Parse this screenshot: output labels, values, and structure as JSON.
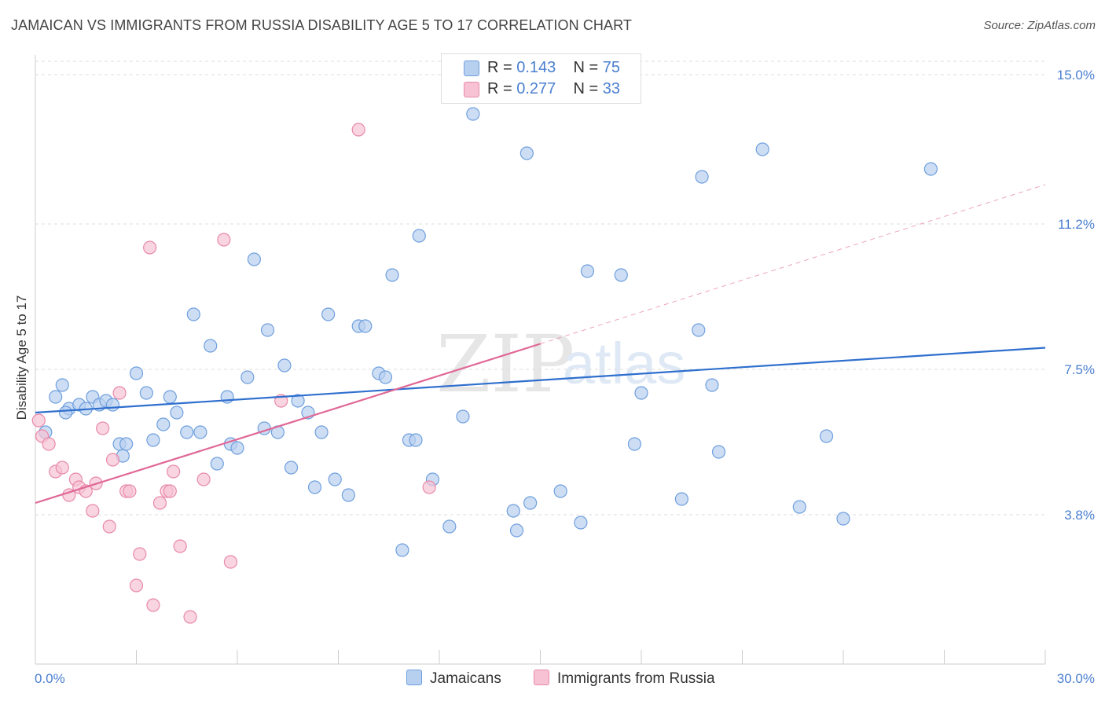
{
  "title": "JAMAICAN VS IMMIGRANTS FROM RUSSIA DISABILITY AGE 5 TO 17 CORRELATION CHART",
  "source": "Source: ZipAtlas.com",
  "watermark": {
    "zip": "ZIP",
    "atlas": "atlas"
  },
  "legend": {
    "r_label": "R =",
    "n_label": "N =",
    "rows": [
      {
        "r": "0.143",
        "n": "75"
      },
      {
        "r": "0.277",
        "n": "33"
      }
    ]
  },
  "colors": {
    "blue_fill": "#b8d0f0",
    "blue_stroke": "#6f9fde",
    "blue_line": "#2f6fce",
    "pink_fill": "#f7c3d4",
    "pink_stroke": "#e889a8",
    "pink_line": "#e06896",
    "tick_text": "#4a7fd0",
    "grid": "#dddddd"
  },
  "chart_data": {
    "type": "scatter",
    "title": "JAMAICAN VS IMMIGRANTS FROM RUSSIA DISABILITY AGE 5 TO 17 CORRELATION CHART",
    "xlabel": "",
    "ylabel": "Disability Age 5 to 17",
    "xlim": [
      0,
      30
    ],
    "ylim": [
      0,
      15.5
    ],
    "x_tick_labels": [
      "0.0%",
      "30.0%"
    ],
    "y_ticks": [
      3.8,
      7.5,
      11.2,
      15.0
    ],
    "y_tick_labels": [
      "3.8%",
      "7.5%",
      "11.2%",
      "15.0%"
    ],
    "grid": true,
    "legend_position": "top-center",
    "series": [
      {
        "name": "Jamaicans",
        "points": [
          [
            0.3,
            5.9
          ],
          [
            0.6,
            6.8
          ],
          [
            0.8,
            7.1
          ],
          [
            1.0,
            6.5
          ],
          [
            1.3,
            6.6
          ],
          [
            1.5,
            6.5
          ],
          [
            1.7,
            6.8
          ],
          [
            1.9,
            6.6
          ],
          [
            2.1,
            6.7
          ],
          [
            2.3,
            6.6
          ],
          [
            2.5,
            5.6
          ],
          [
            2.6,
            5.3
          ],
          [
            3.0,
            7.4
          ],
          [
            3.3,
            6.9
          ],
          [
            3.5,
            5.7
          ],
          [
            3.8,
            6.1
          ],
          [
            4.0,
            6.8
          ],
          [
            4.2,
            6.4
          ],
          [
            4.5,
            5.9
          ],
          [
            4.7,
            8.9
          ],
          [
            4.9,
            5.9
          ],
          [
            5.2,
            8.1
          ],
          [
            5.4,
            5.1
          ],
          [
            5.7,
            6.8
          ],
          [
            5.8,
            5.6
          ],
          [
            6.0,
            5.5
          ],
          [
            6.3,
            7.3
          ],
          [
            6.5,
            10.3
          ],
          [
            6.8,
            6.0
          ],
          [
            6.9,
            8.5
          ],
          [
            7.2,
            5.9
          ],
          [
            7.4,
            7.6
          ],
          [
            7.6,
            5.0
          ],
          [
            7.8,
            6.7
          ],
          [
            8.1,
            6.4
          ],
          [
            8.3,
            4.5
          ],
          [
            8.5,
            5.9
          ],
          [
            8.7,
            8.9
          ],
          [
            8.9,
            4.7
          ],
          [
            9.3,
            4.3
          ],
          [
            9.6,
            8.6
          ],
          [
            9.8,
            8.6
          ],
          [
            10.2,
            7.4
          ],
          [
            10.4,
            7.3
          ],
          [
            10.6,
            9.9
          ],
          [
            10.9,
            2.9
          ],
          [
            11.1,
            5.7
          ],
          [
            11.3,
            5.7
          ],
          [
            11.4,
            10.9
          ],
          [
            11.8,
            4.7
          ],
          [
            12.3,
            3.5
          ],
          [
            12.7,
            6.3
          ],
          [
            13.0,
            14.0
          ],
          [
            14.2,
            3.9
          ],
          [
            14.3,
            3.4
          ],
          [
            14.6,
            13.0
          ],
          [
            14.7,
            4.1
          ],
          [
            15.6,
            4.4
          ],
          [
            16.2,
            3.6
          ],
          [
            17.4,
            9.9
          ],
          [
            17.8,
            5.6
          ],
          [
            18.0,
            6.9
          ],
          [
            19.2,
            4.2
          ],
          [
            19.7,
            8.5
          ],
          [
            19.8,
            12.4
          ],
          [
            20.1,
            7.1
          ],
          [
            20.3,
            5.4
          ],
          [
            21.6,
            13.1
          ],
          [
            22.7,
            4.0
          ],
          [
            23.5,
            5.8
          ],
          [
            24.0,
            3.7
          ],
          [
            26.6,
            12.6
          ],
          [
            0.9,
            6.4
          ],
          [
            2.7,
            5.6
          ],
          [
            16.4,
            10.0
          ]
        ],
        "trend": [
          [
            0,
            6.4
          ],
          [
            30,
            8.05
          ]
        ]
      },
      {
        "name": "Immigrants from Russia",
        "points": [
          [
            0.2,
            5.8
          ],
          [
            0.4,
            5.6
          ],
          [
            0.6,
            4.9
          ],
          [
            0.8,
            5.0
          ],
          [
            1.0,
            4.3
          ],
          [
            1.2,
            4.7
          ],
          [
            1.3,
            4.5
          ],
          [
            1.5,
            4.4
          ],
          [
            1.7,
            3.9
          ],
          [
            1.8,
            4.6
          ],
          [
            2.0,
            6.0
          ],
          [
            2.2,
            3.5
          ],
          [
            2.3,
            5.2
          ],
          [
            2.5,
            6.9
          ],
          [
            2.7,
            4.4
          ],
          [
            2.8,
            4.4
          ],
          [
            3.0,
            2.0
          ],
          [
            3.1,
            2.8
          ],
          [
            3.4,
            10.6
          ],
          [
            3.5,
            1.5
          ],
          [
            3.7,
            4.1
          ],
          [
            3.9,
            4.4
          ],
          [
            4.0,
            4.4
          ],
          [
            4.1,
            4.9
          ],
          [
            4.3,
            3.0
          ],
          [
            4.6,
            1.2
          ],
          [
            5.0,
            4.7
          ],
          [
            5.6,
            10.8
          ],
          [
            5.8,
            2.6
          ],
          [
            7.3,
            6.7
          ],
          [
            9.6,
            13.6
          ],
          [
            11.7,
            4.5
          ],
          [
            0.1,
            6.2
          ]
        ],
        "trend": [
          [
            0,
            4.1
          ],
          [
            15,
            8.15
          ]
        ],
        "trend_dashed_extension": [
          [
            15,
            8.15
          ],
          [
            30,
            12.2
          ]
        ]
      }
    ]
  },
  "bottom_legend": [
    {
      "label": "Jamaicans"
    },
    {
      "label": "Immigrants from Russia"
    }
  ]
}
